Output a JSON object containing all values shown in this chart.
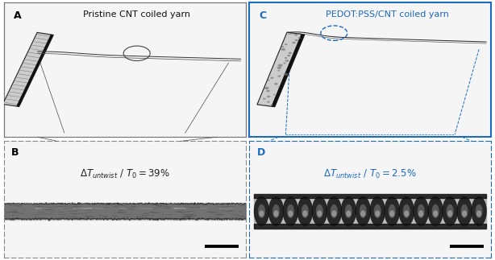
{
  "fig_width": 6.14,
  "fig_height": 3.23,
  "dpi": 100,
  "panel_bg": "#f5f5f5",
  "label_A": "A",
  "label_B": "B",
  "label_C": "C",
  "label_D": "D",
  "title_A": "Pristine CNT coiled yarn",
  "title_C": "PEDOT:PSS/CNT coiled yarn",
  "title_A_color": "#111111",
  "title_C_color": "#1a6abf",
  "text_B_color": "#222222",
  "text_D_color": "#1a6abf",
  "border_A_color": "#777777",
  "border_B_color": "#888888",
  "border_C_color": "#1a6abf",
  "border_D_color": "#1a6abf",
  "stub_color_A": "#444444",
  "stub_color_C": "#555555",
  "fiber_line_color": "#333333",
  "circle_A_color": "#444444",
  "circle_C_color": "#1a6abf",
  "zoom_line_A_color": "#555555",
  "zoom_line_C_color": "#1a6abf",
  "scale_bar_color": "#000000"
}
